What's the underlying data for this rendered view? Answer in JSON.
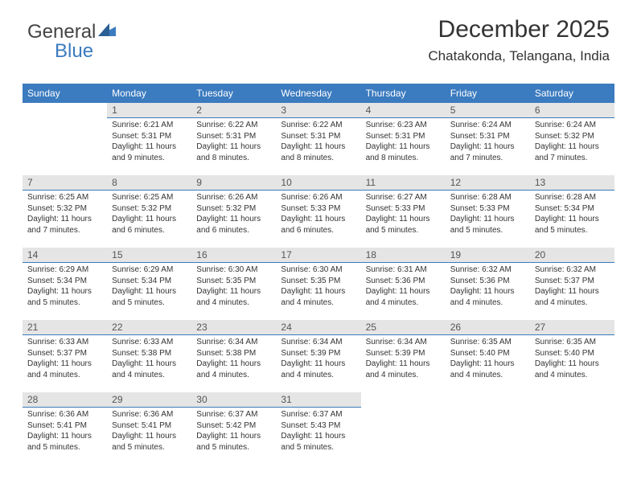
{
  "logo": {
    "text1": "General",
    "text2": "Blue"
  },
  "title": "December 2025",
  "subtitle": "Chatakonda, Telangana, India",
  "colors": {
    "header_bg": "#3b7bbf",
    "header_fg": "#ffffff",
    "daynum_bg": "#e5e5e5",
    "daynum_border": "#3b7bbf",
    "text": "#333333",
    "background": "#ffffff"
  },
  "day_labels": [
    "Sunday",
    "Monday",
    "Tuesday",
    "Wednesday",
    "Thursday",
    "Friday",
    "Saturday"
  ],
  "weeks": [
    [
      null,
      {
        "n": "1",
        "sunrise": "6:21 AM",
        "sunset": "5:31 PM",
        "daylight": "11 hours and 9 minutes."
      },
      {
        "n": "2",
        "sunrise": "6:22 AM",
        "sunset": "5:31 PM",
        "daylight": "11 hours and 8 minutes."
      },
      {
        "n": "3",
        "sunrise": "6:22 AM",
        "sunset": "5:31 PM",
        "daylight": "11 hours and 8 minutes."
      },
      {
        "n": "4",
        "sunrise": "6:23 AM",
        "sunset": "5:31 PM",
        "daylight": "11 hours and 8 minutes."
      },
      {
        "n": "5",
        "sunrise": "6:24 AM",
        "sunset": "5:31 PM",
        "daylight": "11 hours and 7 minutes."
      },
      {
        "n": "6",
        "sunrise": "6:24 AM",
        "sunset": "5:32 PM",
        "daylight": "11 hours and 7 minutes."
      }
    ],
    [
      {
        "n": "7",
        "sunrise": "6:25 AM",
        "sunset": "5:32 PM",
        "daylight": "11 hours and 7 minutes."
      },
      {
        "n": "8",
        "sunrise": "6:25 AM",
        "sunset": "5:32 PM",
        "daylight": "11 hours and 6 minutes."
      },
      {
        "n": "9",
        "sunrise": "6:26 AM",
        "sunset": "5:32 PM",
        "daylight": "11 hours and 6 minutes."
      },
      {
        "n": "10",
        "sunrise": "6:26 AM",
        "sunset": "5:33 PM",
        "daylight": "11 hours and 6 minutes."
      },
      {
        "n": "11",
        "sunrise": "6:27 AM",
        "sunset": "5:33 PM",
        "daylight": "11 hours and 5 minutes."
      },
      {
        "n": "12",
        "sunrise": "6:28 AM",
        "sunset": "5:33 PM",
        "daylight": "11 hours and 5 minutes."
      },
      {
        "n": "13",
        "sunrise": "6:28 AM",
        "sunset": "5:34 PM",
        "daylight": "11 hours and 5 minutes."
      }
    ],
    [
      {
        "n": "14",
        "sunrise": "6:29 AM",
        "sunset": "5:34 PM",
        "daylight": "11 hours and 5 minutes."
      },
      {
        "n": "15",
        "sunrise": "6:29 AM",
        "sunset": "5:34 PM",
        "daylight": "11 hours and 5 minutes."
      },
      {
        "n": "16",
        "sunrise": "6:30 AM",
        "sunset": "5:35 PM",
        "daylight": "11 hours and 4 minutes."
      },
      {
        "n": "17",
        "sunrise": "6:30 AM",
        "sunset": "5:35 PM",
        "daylight": "11 hours and 4 minutes."
      },
      {
        "n": "18",
        "sunrise": "6:31 AM",
        "sunset": "5:36 PM",
        "daylight": "11 hours and 4 minutes."
      },
      {
        "n": "19",
        "sunrise": "6:32 AM",
        "sunset": "5:36 PM",
        "daylight": "11 hours and 4 minutes."
      },
      {
        "n": "20",
        "sunrise": "6:32 AM",
        "sunset": "5:37 PM",
        "daylight": "11 hours and 4 minutes."
      }
    ],
    [
      {
        "n": "21",
        "sunrise": "6:33 AM",
        "sunset": "5:37 PM",
        "daylight": "11 hours and 4 minutes."
      },
      {
        "n": "22",
        "sunrise": "6:33 AM",
        "sunset": "5:38 PM",
        "daylight": "11 hours and 4 minutes."
      },
      {
        "n": "23",
        "sunrise": "6:34 AM",
        "sunset": "5:38 PM",
        "daylight": "11 hours and 4 minutes."
      },
      {
        "n": "24",
        "sunrise": "6:34 AM",
        "sunset": "5:39 PM",
        "daylight": "11 hours and 4 minutes."
      },
      {
        "n": "25",
        "sunrise": "6:34 AM",
        "sunset": "5:39 PM",
        "daylight": "11 hours and 4 minutes."
      },
      {
        "n": "26",
        "sunrise": "6:35 AM",
        "sunset": "5:40 PM",
        "daylight": "11 hours and 4 minutes."
      },
      {
        "n": "27",
        "sunrise": "6:35 AM",
        "sunset": "5:40 PM",
        "daylight": "11 hours and 4 minutes."
      }
    ],
    [
      {
        "n": "28",
        "sunrise": "6:36 AM",
        "sunset": "5:41 PM",
        "daylight": "11 hours and 5 minutes."
      },
      {
        "n": "29",
        "sunrise": "6:36 AM",
        "sunset": "5:41 PM",
        "daylight": "11 hours and 5 minutes."
      },
      {
        "n": "30",
        "sunrise": "6:37 AM",
        "sunset": "5:42 PM",
        "daylight": "11 hours and 5 minutes."
      },
      {
        "n": "31",
        "sunrise": "6:37 AM",
        "sunset": "5:43 PM",
        "daylight": "11 hours and 5 minutes."
      },
      null,
      null,
      null
    ]
  ],
  "labels": {
    "sunrise": "Sunrise:",
    "sunset": "Sunset:",
    "daylight": "Daylight:"
  }
}
